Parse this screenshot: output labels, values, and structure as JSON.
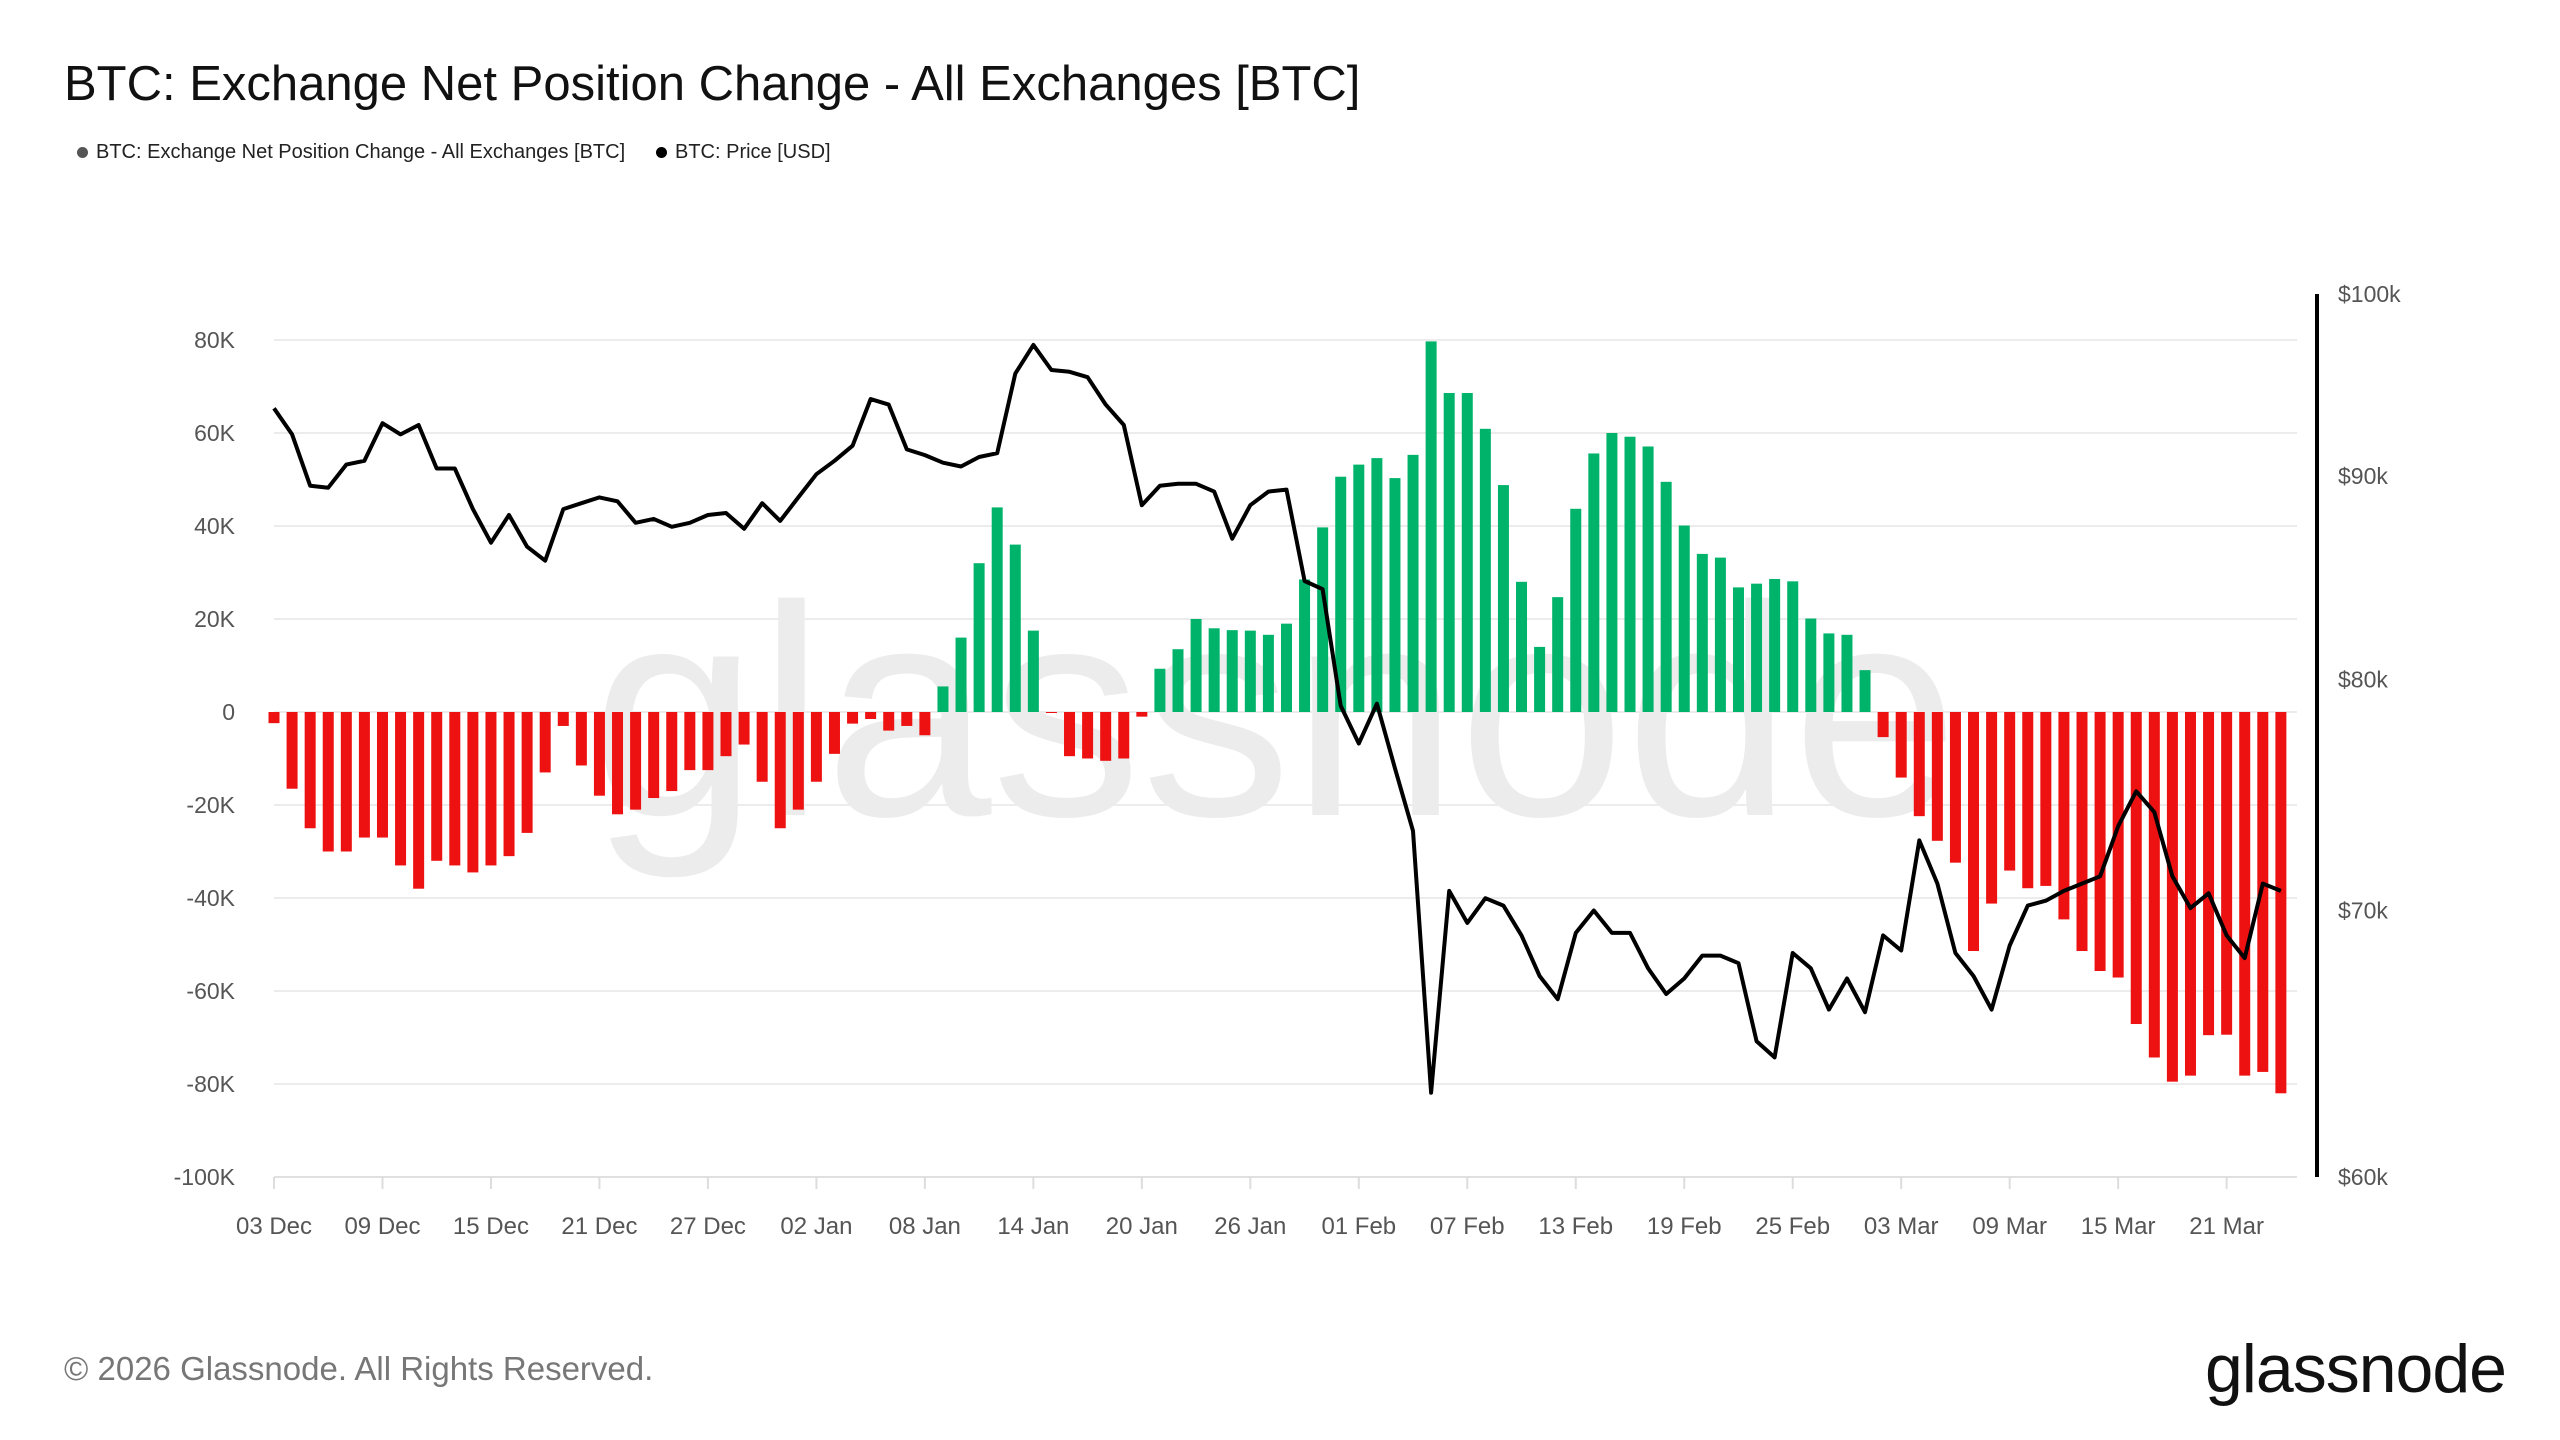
{
  "title": "BTC: Exchange Net Position Change - All Exchanges [BTC]",
  "legend": [
    {
      "label": "BTC: Exchange Net Position Change - All Exchanges [BTC]",
      "color": "#555555"
    },
    {
      "label": "BTC: Price [USD]",
      "color": "#000000"
    }
  ],
  "footer": {
    "copyright": "© 2026 Glassnode. All Rights Reserved.",
    "logo": "glassnode"
  },
  "watermark": "glassnode",
  "colors": {
    "positive": "#00b36b",
    "negative": "#ee1111",
    "price": "#000000",
    "grid": "#ececec"
  },
  "chart_data": {
    "type": "bar+line",
    "title": "BTC: Exchange Net Position Change - All Exchanges [BTC]",
    "x_start": "2025-12-03",
    "x_ticks": [
      "03 Dec",
      "09 Dec",
      "15 Dec",
      "21 Dec",
      "27 Dec",
      "02 Jan",
      "08 Jan",
      "14 Jan",
      "20 Jan",
      "26 Jan",
      "01 Feb",
      "07 Feb",
      "13 Feb",
      "19 Feb",
      "25 Feb",
      "03 Mar",
      "09 Mar",
      "15 Mar",
      "21 Mar"
    ],
    "y_left": {
      "ticks": [
        "80K",
        "60K",
        "40K",
        "20K",
        "0",
        "-20K",
        "-40K",
        "-60K",
        "-80K",
        "-100K"
      ],
      "range": [
        -100000,
        80000
      ]
    },
    "y_right": {
      "ticks": [
        "$100k",
        "$90k",
        "$80k",
        "$70k",
        "$60k"
      ],
      "range": [
        60000,
        100000
      ],
      "scale": "log"
    },
    "grid": true,
    "legend_position": "top-left",
    "series": [
      {
        "name": "BTC: Exchange Net Position Change - All Exchanges [BTC]",
        "type": "bar",
        "axis": "left",
        "values": [
          -2400,
          -16500,
          -25000,
          -30000,
          -30000,
          -27000,
          -27000,
          -33000,
          -38000,
          -32000,
          -33000,
          -34500,
          -33000,
          -31000,
          -26000,
          -13000,
          -3000,
          -11500,
          -18000,
          -22000,
          -21000,
          -18500,
          -17000,
          -12500,
          -12500,
          -9500,
          -7000,
          -15000,
          -25000,
          -21000,
          -15000,
          -9000,
          -2500,
          -1500,
          -4000,
          -3000,
          -5000,
          5500,
          16000,
          32000,
          44000,
          36000,
          17500,
          -200,
          -9500,
          -10000,
          -10500,
          -10000,
          -1000,
          9300,
          13500,
          20000,
          18000,
          17600,
          17500,
          16600,
          19000,
          28500,
          39700,
          50600,
          53200,
          54600,
          50300,
          55300,
          79700,
          68600,
          68600,
          60900,
          48800,
          28000,
          14000,
          24700,
          43700,
          55600,
          60000,
          59200,
          57100,
          49500,
          40100,
          34000,
          33200,
          26800,
          27600,
          28600,
          28100,
          20100,
          16900,
          16600,
          9000,
          -5400,
          -14100,
          -22400,
          -27700,
          -32400,
          -51400,
          -41200,
          -34100,
          -37900,
          -37400,
          -44600,
          -51400,
          -55700,
          -57100,
          -67100,
          -74300,
          -79500,
          -78200,
          -69500,
          -69400,
          -78200,
          -77400,
          -82000
        ]
      },
      {
        "name": "BTC: Price [USD]",
        "type": "line",
        "axis": "right",
        "values": [
          93600,
          92200,
          89500,
          89400,
          90600,
          90800,
          92800,
          92200,
          92700,
          90400,
          90400,
          88300,
          86600,
          88000,
          86400,
          85700,
          88300,
          88600,
          88900,
          88700,
          87600,
          87800,
          87400,
          87600,
          88000,
          88100,
          87300,
          88600,
          87700,
          88900,
          90100,
          90800,
          91600,
          94100,
          93800,
          91400,
          91100,
          90700,
          90500,
          91000,
          91200,
          95500,
          97100,
          95700,
          95600,
          95300,
          93800,
          92700,
          88500,
          89500,
          89600,
          89600,
          89200,
          86800,
          88500,
          89200,
          89300,
          84700,
          84300,
          78800,
          77100,
          78900,
          76000,
          73300,
          63000,
          70800,
          69500,
          70500,
          70200,
          69000,
          67400,
          66500,
          69100,
          70000,
          69100,
          69100,
          67700,
          66700,
          67300,
          68200,
          68200,
          67900,
          64900,
          64300,
          68300,
          67700,
          66100,
          67300,
          66000,
          69000,
          68400,
          72900,
          71100,
          68300,
          67400,
          66100,
          68600,
          70200,
          70400,
          70800,
          71100,
          71400,
          73500,
          75000,
          74100,
          71400,
          70100,
          70700,
          69000,
          68100,
          71100,
          70800
        ]
      }
    ]
  }
}
